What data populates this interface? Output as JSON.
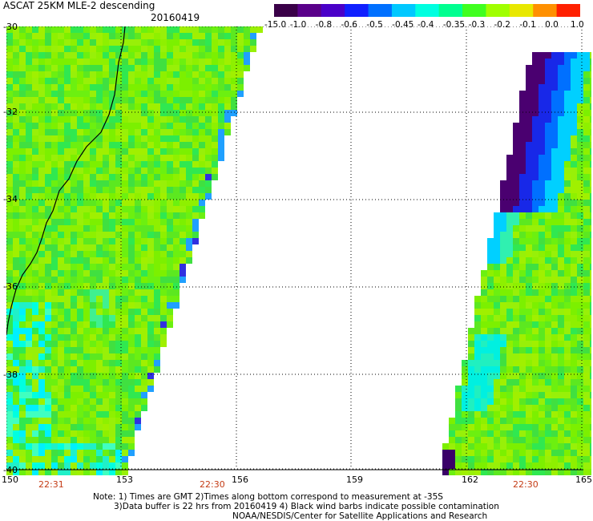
{
  "header": {
    "title": "ASCAT 25KM MLE-2 descending",
    "date": "20160419"
  },
  "colorbar": {
    "tick_labels": [
      "-15.0",
      "-1.0",
      "-0.8",
      "-0.6",
      "-0.5",
      "-0.45",
      "-0.4",
      "-0.35",
      "-0.3",
      "-0.2",
      "-0.1",
      "0.0",
      "1.0"
    ],
    "colors": [
      "#3a0048",
      "#5a008a",
      "#4a00c8",
      "#1020ff",
      "#0070ff",
      "#00c8ff",
      "#00ffe0",
      "#00ff90",
      "#40ff20",
      "#a0ff00",
      "#e8e800",
      "#ff9000",
      "#ff2000"
    ]
  },
  "map": {
    "lat_range": [
      -30,
      -40
    ],
    "lon_range": [
      150,
      165
    ],
    "grid": true,
    "lat_labels": [
      "-30",
      "-32",
      "-34",
      "-36",
      "-38",
      "-40"
    ],
    "lon_labels": [
      "150",
      "153",
      "156",
      "159",
      "162",
      "165"
    ],
    "pass_times": [
      "22:31",
      "22:30",
      "22:30"
    ]
  },
  "notes": {
    "line1": "Note: 1) Times are GMT 2)Times along bottom correspond to measurement at -35S",
    "line2": "3)Data buffer is 22 hrs from 20160419 4) Black wind barbs indicate possible contamination",
    "line3": "NOAA/NESDIS/Center for Satellite Applications and Research"
  }
}
